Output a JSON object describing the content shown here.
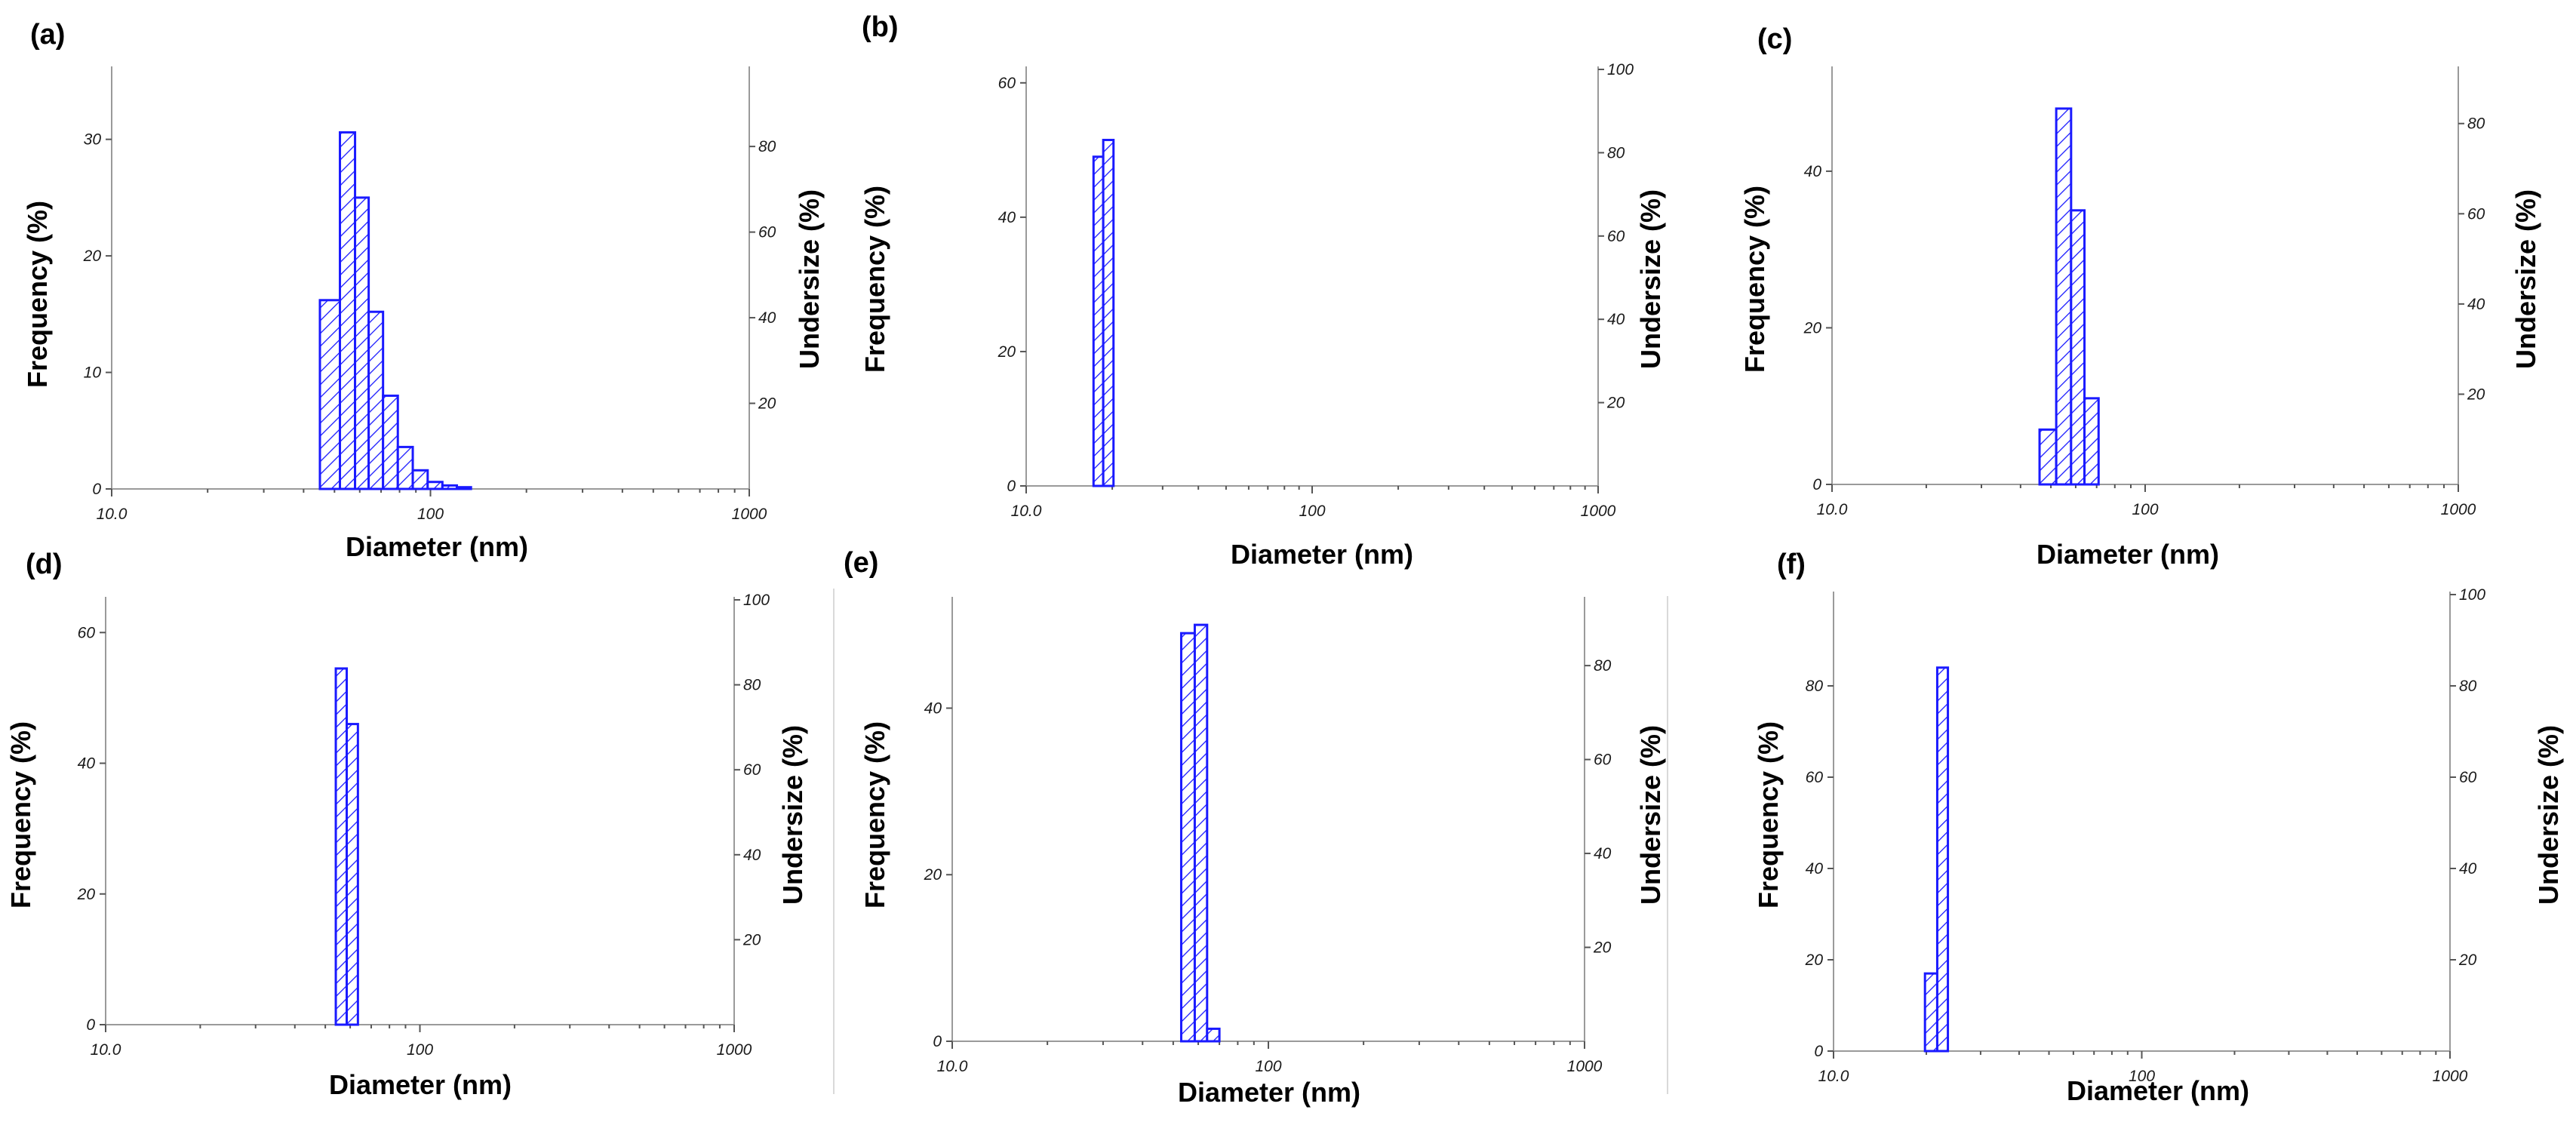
{
  "x_axis": {
    "title": "Diameter (nm)",
    "ticks": [
      {
        "value": 10,
        "label": "10.0"
      },
      {
        "value": 100,
        "label": "100"
      },
      {
        "value": 1000,
        "label": "1000"
      }
    ]
  },
  "y_left_title": "Frequency (%)",
  "y_right_title": "Undersize (%)",
  "colors": {
    "bar": "#1a1aff",
    "axis": "#9a9a9a"
  },
  "chart_data": [
    {
      "type": "bar",
      "panel": "(a)",
      "xlabel": "Diameter (nm)",
      "ylabel": "Frequency (%)",
      "y2label": "Undersize (%)",
      "xscale": "log",
      "xlim": [
        10,
        1000
      ],
      "ylim": [
        0,
        36
      ],
      "y2lim": [
        0,
        98
      ],
      "yticks": [
        0,
        10,
        20,
        30
      ],
      "y2ticks": [
        20,
        40,
        60,
        80
      ],
      "bins": [
        {
          "lo": 45,
          "hi": 52,
          "value": 16.2
        },
        {
          "lo": 52,
          "hi": 58,
          "value": 30.6
        },
        {
          "lo": 58,
          "hi": 64,
          "value": 25.0
        },
        {
          "lo": 64,
          "hi": 71,
          "value": 15.2
        },
        {
          "lo": 71,
          "hi": 79,
          "value": 8.0
        },
        {
          "lo": 79,
          "hi": 88,
          "value": 3.6
        },
        {
          "lo": 88,
          "hi": 98,
          "value": 1.6
        },
        {
          "lo": 98,
          "hi": 109,
          "value": 0.6
        },
        {
          "lo": 109,
          "hi": 121,
          "value": 0.3
        },
        {
          "lo": 121,
          "hi": 134,
          "value": 0.15
        }
      ]
    },
    {
      "type": "bar",
      "panel": "(b)",
      "xlabel": "Diameter (nm)",
      "ylabel": "Frequency (%)",
      "y2label": "Undersize (%)",
      "xscale": "log",
      "xlim": [
        10,
        1000
      ],
      "ylim": [
        0,
        62
      ],
      "y2lim": [
        0,
        100
      ],
      "yticks": [
        0,
        20,
        40,
        60
      ],
      "y2ticks": [
        20,
        40,
        60,
        80,
        100
      ],
      "y2ticklabels": [
        "20",
        "40",
        "60",
        "80",
        "100"
      ],
      "bins": [
        {
          "lo": 17.2,
          "hi": 18.6,
          "value": 49.0
        },
        {
          "lo": 18.6,
          "hi": 20.2,
          "value": 51.5
        }
      ]
    },
    {
      "type": "bar",
      "panel": "(c)",
      "xlabel": "Diameter (nm)",
      "ylabel": "Frequency (%)",
      "y2label": "Undersize (%)",
      "xscale": "log",
      "xlim": [
        10,
        1000
      ],
      "ylim": [
        0,
        53
      ],
      "y2lim": [
        0,
        92
      ],
      "yticks": [
        0,
        20,
        40
      ],
      "y2ticks": [
        20,
        40,
        60,
        80
      ],
      "bins": [
        {
          "lo": 46,
          "hi": 52,
          "value": 7.0
        },
        {
          "lo": 52,
          "hi": 58,
          "value": 48.0
        },
        {
          "lo": 58,
          "hi": 64,
          "value": 35.0
        },
        {
          "lo": 64,
          "hi": 71,
          "value": 11.0
        }
      ]
    },
    {
      "type": "bar",
      "panel": "(d)",
      "xlabel": "Diameter (nm)",
      "ylabel": "Frequency (%)",
      "y2label": "Undersize (%)",
      "xscale": "log",
      "xlim": [
        10,
        1000
      ],
      "ylim": [
        0,
        65
      ],
      "y2lim": [
        0,
        100
      ],
      "yticks": [
        0,
        20,
        40,
        60
      ],
      "y2ticks": [
        20,
        40,
        60,
        80,
        100
      ],
      "y2ticklabels": [
        "20",
        "40",
        "60",
        "80",
        "100"
      ],
      "bins": [
        {
          "lo": 54,
          "hi": 58.5,
          "value": 54.5
        },
        {
          "lo": 58.5,
          "hi": 63.5,
          "value": 46.0
        }
      ]
    },
    {
      "type": "bar",
      "panel": "(e)",
      "xlabel": "Diameter (nm)",
      "ylabel": "Frequency (%)",
      "y2label": "Undersize (%)",
      "xscale": "log",
      "xlim": [
        10,
        1000
      ],
      "ylim": [
        0,
        53
      ],
      "y2lim": [
        0,
        94
      ],
      "yticks": [
        0,
        20,
        40
      ],
      "y2ticks": [
        20,
        40,
        60,
        80
      ],
      "bins": [
        {
          "lo": 53,
          "hi": 58.5,
          "value": 49.0
        },
        {
          "lo": 58.5,
          "hi": 64,
          "value": 50.0
        },
        {
          "lo": 64,
          "hi": 70,
          "value": 1.5
        }
      ]
    },
    {
      "type": "bar",
      "panel": "(f)",
      "xlabel": "Diameter (nm)",
      "ylabel": "Frequency (%)",
      "y2label": "Undersize (%)",
      "xscale": "log",
      "xlim": [
        10,
        1000
      ],
      "ylim": [
        0,
        100
      ],
      "y2lim": [
        0,
        100
      ],
      "yticks": [
        0,
        20,
        40,
        60,
        80
      ],
      "y2ticks": [
        20,
        40,
        60,
        80,
        100
      ],
      "y2ticklabels": [
        "20",
        "40",
        "60",
        "80",
        "100"
      ],
      "bins": [
        {
          "lo": 19.8,
          "hi": 21.7,
          "value": 17.0
        },
        {
          "lo": 21.7,
          "hi": 23.5,
          "value": 84.0
        }
      ]
    }
  ]
}
